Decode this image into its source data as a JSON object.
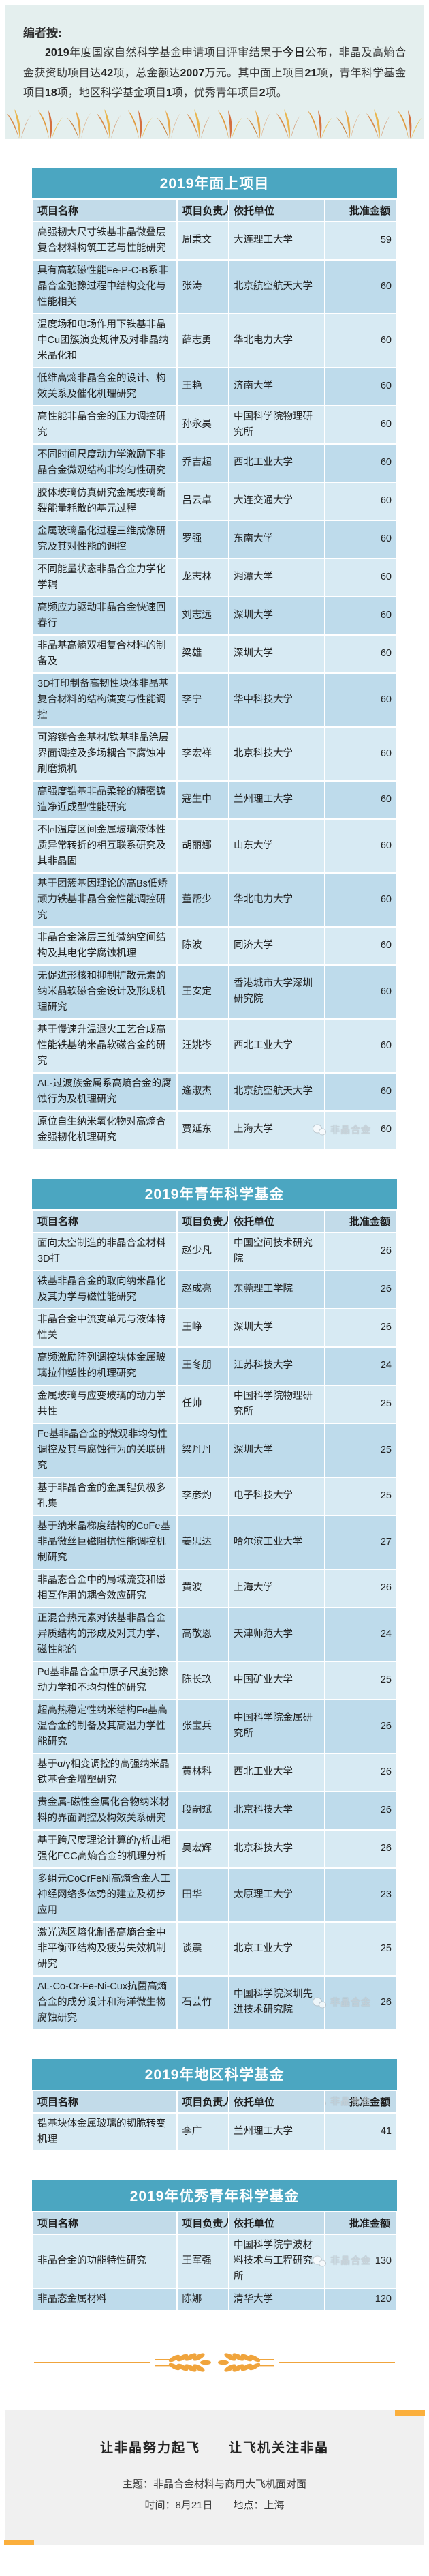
{
  "page": {
    "accent_teal": "#4ba6c1",
    "header_row_blue": "#c2dbe9",
    "row_light_blue": "#d7eaf3",
    "row_dark_blue": "#bedbeb",
    "note_background": "#e4efee",
    "accent_orange": "#fbaf3c"
  },
  "editor_note": {
    "title": "编者按:",
    "body_segments": [
      {
        "t": "2019",
        "b": 1
      },
      {
        "t": "年度国家自然科学基金申请项目评审结果于",
        "b": 0
      },
      {
        "t": "今日",
        "b": 1
      },
      {
        "t": "公布，非晶及高熵合金获资助项目达",
        "b": 0
      },
      {
        "t": "42",
        "b": 1
      },
      {
        "t": "项，总金额达",
        "b": 0
      },
      {
        "t": "2007",
        "b": 1
      },
      {
        "t": "万元。其中面上项目",
        "b": 0
      },
      {
        "t": "21",
        "b": 1
      },
      {
        "t": "项，青年科学基金项目",
        "b": 0
      },
      {
        "t": "18",
        "b": 1
      },
      {
        "t": "项，地区科学基金项目",
        "b": 0
      },
      {
        "t": "1",
        "b": 1
      },
      {
        "t": "项，优秀青年项目",
        "b": 0
      },
      {
        "t": "2",
        "b": 1
      },
      {
        "t": "项。",
        "b": 0
      }
    ]
  },
  "watermark": {
    "label": "非晶合金"
  },
  "tables": [
    {
      "title": "2019年面上项目",
      "columns": [
        "项目名称",
        "项目负责人",
        "依托单位",
        "批准金额"
      ],
      "watermark_row": 20,
      "rows": [
        [
          "高强韧大尺寸铁基非晶微叠层复合材料构筑工艺与性能研究",
          "周秉文",
          "大连理工大学",
          59
        ],
        [
          "具有高软磁性能Fe-P-C-B系非晶合金弛豫过程中结构变化与性能相关",
          "张涛",
          "北京航空航天大学",
          60
        ],
        [
          "温度场和电场作用下铁基非晶中Cu团簇演变规律及对非晶纳米晶化和",
          "薛志勇",
          "华北电力大学",
          60
        ],
        [
          "低维高熵非晶合金的设计、构效关系及催化机理研究",
          "王艳",
          "济南大学",
          60
        ],
        [
          "高性能非晶合金的压力调控研究",
          "孙永昊",
          "中国科学院物理研究所",
          60
        ],
        [
          "不同时间尺度动力学激励下非晶合金微观结构非均匀性研究",
          "乔吉超",
          "西北工业大学",
          60
        ],
        [
          "胶体玻璃仿真研究金属玻璃断裂能量耗散的基元过程",
          "吕云卓",
          "大连交通大学",
          60
        ],
        [
          "金属玻璃晶化过程三维成像研究及其对性能的调控",
          "罗强",
          "东南大学",
          60
        ],
        [
          "不同能量状态非晶合金力学化学耦",
          "龙志林",
          "湘潭大学",
          60
        ],
        [
          "高频应力驱动非晶合金快速回春行",
          "刘志远",
          "深圳大学",
          60
        ],
        [
          "非晶基高熵双相复合材料的制备及",
          "梁雄",
          "深圳大学",
          60
        ],
        [
          "3D打印制备高韧性块体非晶基复合材料的结构演变与性能调控",
          "李宁",
          "华中科技大学",
          60
        ],
        [
          "可溶镁合金基材/铁基非晶涂层界面调控及多场耦合下腐蚀冲刷磨损机",
          "李宏祥",
          "北京科技大学",
          60
        ],
        [
          "高强度锆基非晶柔轮的精密铸造净近成型性能研究",
          "寇生中",
          "兰州理工大学",
          60
        ],
        [
          "不同温度区间金属玻璃液体性质异常转折的相互联系研究及其非晶固",
          "胡丽娜",
          "山东大学",
          60
        ],
        [
          "基于团簇基因理论的高Bs低矫顽力铁基非晶合金性能调控研究",
          "董帮少",
          "华北电力大学",
          60
        ],
        [
          "非晶合金涂层三维微纳空间结构及其电化学腐蚀机理",
          "陈波",
          "同济大学",
          60
        ],
        [
          "无促进形核和抑制扩散元素的纳米晶软磁合金设计及形成机理研究",
          "王安定",
          "香港城市大学深圳研究院",
          60
        ],
        [
          "基于慢速升温退火工艺合成高性能铁基纳米晶软磁合金的研究",
          "汪姚岑",
          "西北工业大学",
          60
        ],
        [
          "AL-过渡族金属系高熵合金的腐蚀行为及机理研究",
          "逄淑杰",
          "北京航空航天大学",
          60
        ],
        [
          "原位自生纳米氧化物对高熵合金强韧化机理研究",
          "贾延东",
          "上海大学",
          60
        ]
      ]
    },
    {
      "title": "2019年青年科学基金",
      "columns": [
        "项目名称",
        "项目负责人",
        "依托单位",
        "批准金额"
      ],
      "watermark_row": 17,
      "rows": [
        [
          "面向太空制造的非晶合金材料3D打",
          "赵少凡",
          "中国空间技术研究院",
          26
        ],
        [
          "铁基非晶合金的取向纳米晶化及其力学与磁性能研究",
          "赵成亮",
          "东莞理工学院",
          26
        ],
        [
          "非晶合金中流变单元与液体特性关",
          "王峥",
          "深圳大学",
          26
        ],
        [
          "高频激励阵列调控块体金属玻璃拉伸塑性的机理研究",
          "王冬朋",
          "江苏科技大学",
          24
        ],
        [
          "金属玻璃与应变玻璃的动力学共性",
          "任帅",
          "中国科学院物理研究所",
          25
        ],
        [
          "Fe基非晶合金的微观非均匀性调控及其与腐蚀行为的关联研究",
          "梁丹丹",
          "深圳大学",
          25
        ],
        [
          "基于非晶合金的金属锂负极多孔集",
          "李彦灼",
          "电子科技大学",
          25
        ],
        [
          "基于纳米晶梯度结构的CoFe基非晶微丝巨磁阻抗性能调控机制研究",
          "姜思达",
          "哈尔滨工业大学",
          27
        ],
        [
          "非晶态合金中的局域流变和磁相互作用的耦合效应研究",
          "黄波",
          "上海大学",
          26
        ],
        [
          "正混合热元素对铁基非晶合金异质结构的形成及对其力学、磁性能的",
          "高敬恩",
          "天津师范大学",
          24
        ],
        [
          "Pd基非晶合金中原子尺度弛豫动力学和不均匀性的研究",
          "陈长玖",
          "中国矿业大学",
          25
        ],
        [
          "超高热稳定性纳米结构Fe基高温合金的制备及其高温力学性能研究",
          "张宝兵",
          "中国科学院金属研究所",
          26
        ],
        [
          "基于α/γ相变调控的高强纳米晶铁基合金增塑研究",
          "黄林科",
          "西北工业大学",
          26
        ],
        [
          "贵金属-磁性金属化合物纳米材料的界面调控及构效关系研究",
          "段嗣斌",
          "北京科技大学",
          26
        ],
        [
          "基于跨尺度理论计算的γ析出相强化FCC高熵合金的机理分析",
          "吴宏辉",
          "北京科技大学",
          26
        ],
        [
          "多组元CoCrFeNi高熵合金人工神经网络多体势的建立及初步应用",
          "田华",
          "太原理工大学",
          23
        ],
        [
          "激光选区熔化制备高熵合金中非平衡亚结构及疲劳失效机制研究",
          "谈震",
          "北京工业大学",
          25
        ],
        [
          "AL-Co-Cr-Fe-Ni-Cux抗菌高熵合金的成分设计和海洋微生物腐蚀研究",
          "石芸竹",
          "中国科学院深圳先进技术研究院",
          26
        ]
      ]
    },
    {
      "title": "2019年地区科学基金",
      "columns": [
        "项目名称",
        "项目负责人",
        "依托单位",
        "批准金额"
      ],
      "watermark_row": -1,
      "rows": [
        [
          "锆基块体金属玻璃的韧脆转变机理",
          "李广",
          "兰州理工大学",
          41
        ]
      ]
    },
    {
      "title": "2019年优秀青年科学基金",
      "columns": [
        "项目名称",
        "项目负责人",
        "依托单位",
        "批准金额"
      ],
      "watermark_row": 0,
      "rows": [
        [
          "非晶合金的功能特性研究",
          "王军强",
          "中国科学院宁波材料技术与工程研究所",
          130
        ],
        [
          "非晶态金属材料",
          "陈娜",
          "清华大学",
          120
        ]
      ]
    }
  ],
  "footer": {
    "slogan": "让非晶努力起飞　　让飞机关注非晶",
    "theme_line": "主题：非晶合金材料与商用大飞机面对面",
    "time_line": "时间：8月21日　　地点：上海"
  }
}
